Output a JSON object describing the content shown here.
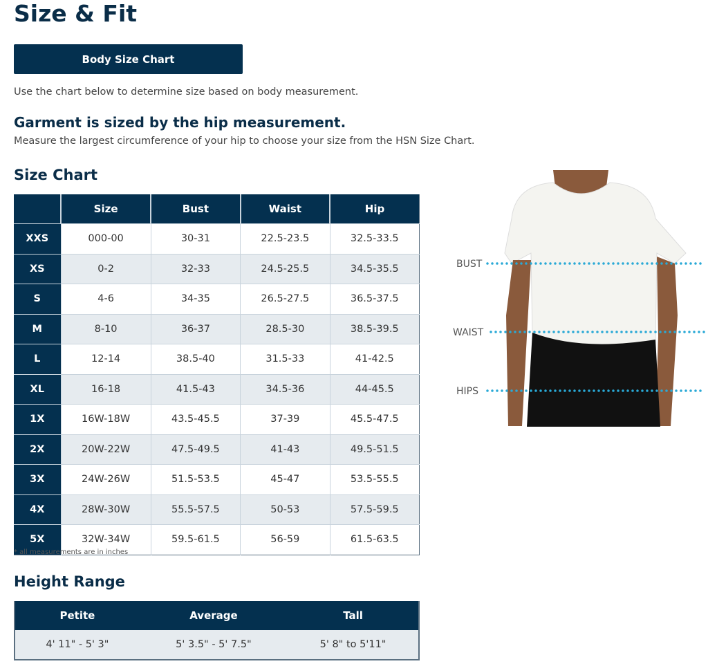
{
  "title": "Size & Fit",
  "button_label": "Body Size Chart",
  "intro": "Use the chart below to determine size based on body measurement.",
  "garment_heading": "Garment is sized by the hip measurement.",
  "garment_text": "Measure the largest circumference of your hip to choose your size from the HSN Size Chart.",
  "size_chart": {
    "heading": "Size Chart",
    "columns": [
      "",
      "Size",
      "Bust",
      "Waist",
      "Hip"
    ],
    "rows": [
      [
        "XXS",
        "000-00",
        "30-31",
        "22.5-23.5",
        "32.5-33.5"
      ],
      [
        "XS",
        "0-2",
        "32-33",
        "24.5-25.5",
        "34.5-35.5"
      ],
      [
        "S",
        "4-6",
        "34-35",
        "26.5-27.5",
        "36.5-37.5"
      ],
      [
        "M",
        "8-10",
        "36-37",
        "28.5-30",
        "38.5-39.5"
      ],
      [
        "L",
        "12-14",
        "38.5-40",
        "31.5-33",
        "41-42.5"
      ],
      [
        "XL",
        "16-18",
        "41.5-43",
        "34.5-36",
        "44-45.5"
      ],
      [
        "1X",
        "16W-18W",
        "43.5-45.5",
        "37-39",
        "45.5-47.5"
      ],
      [
        "2X",
        "20W-22W",
        "47.5-49.5",
        "41-43",
        "49.5-51.5"
      ],
      [
        "3X",
        "24W-26W",
        "51.5-53.5",
        "45-47",
        "53.5-55.5"
      ],
      [
        "4X",
        "28W-30W",
        "55.5-57.5",
        "50-53",
        "57.5-59.5"
      ],
      [
        "5X",
        "32W-34W",
        "59.5-61.5",
        "56-59",
        "61.5-63.5"
      ]
    ],
    "note": "* all measurements are in inches"
  },
  "height_range": {
    "heading": "Height Range",
    "columns": [
      "Petite",
      "Average",
      "Tall"
    ],
    "values": [
      "4' 11\" - 5' 3\"",
      "5' 3.5\" - 5' 7.5\"",
      "5' 8\" to 5'11\""
    ]
  },
  "figure": {
    "labels": [
      "BUST",
      "WAIST",
      "HIPS"
    ],
    "line_color": "#29a9d6"
  },
  "colors": {
    "navy": "#04304f",
    "alt_row": "#e6ebef"
  }
}
